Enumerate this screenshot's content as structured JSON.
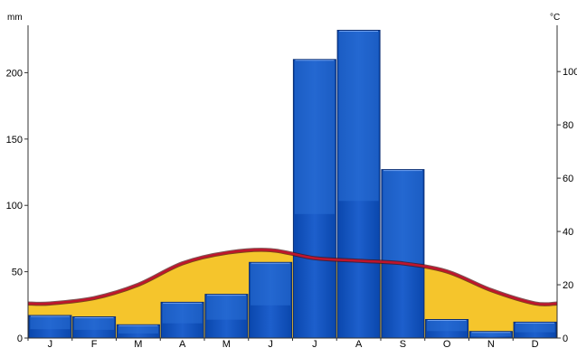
{
  "chart_data": {
    "type": "bar",
    "left_unit": "mm",
    "right_unit": "°C",
    "categories": [
      "J",
      "F",
      "M",
      "A",
      "M",
      "J",
      "J",
      "A",
      "S",
      "O",
      "N",
      "D"
    ],
    "series": [
      {
        "values": [
          17,
          16,
          10,
          27,
          33,
          57,
          210,
          232,
          127,
          14,
          5,
          12
        ]
      }
    ],
    "temperature_band": {
      "curve_values": [
        13,
        15,
        20,
        28,
        32,
        33,
        30,
        29,
        28,
        25,
        18,
        13
      ]
    },
    "left_axis": {
      "ylim": [
        0,
        233
      ],
      "ticks": [
        0,
        50,
        100,
        150,
        200
      ]
    },
    "right_axis": {
      "ylim": [
        0,
        116
      ],
      "ticks": [
        0,
        20,
        40,
        60,
        80,
        100
      ]
    },
    "colors": {
      "bar_fill": "#0b4fbf",
      "bar_highlight": "#2a6fd6",
      "bar_edge": "#0a2d73",
      "band_fill": "#f5c52c",
      "curve_line": "#c0152c"
    },
    "grid": false,
    "legend": "none"
  }
}
